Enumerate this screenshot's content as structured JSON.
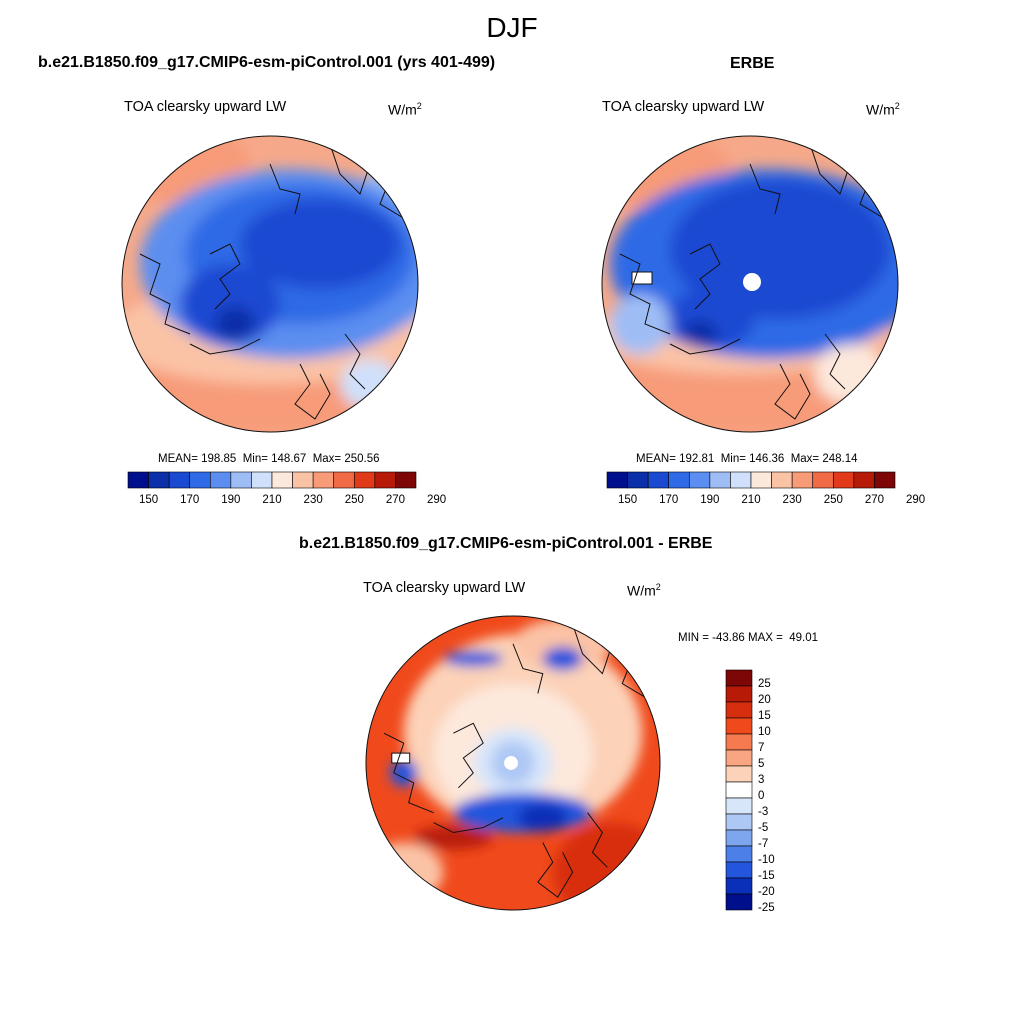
{
  "main_title": "DJF",
  "left_panel": {
    "case_title": "b.e21.B1850.f09_g17.CMIP6-esm-piControl.001 (yrs 401-499)",
    "variable": "TOA clearsky upward LW",
    "units_base": "W/m",
    "units_exp": "2",
    "stats": "MEAN= 198.85  Min= 148.67  Max= 250.56"
  },
  "right_panel": {
    "case_title": "ERBE",
    "variable": "TOA clearsky upward LW",
    "units_base": "W/m",
    "units_exp": "2",
    "stats": "MEAN= 192.81  Min= 146.36  Max= 248.14"
  },
  "diff_panel": {
    "case_title": "b.e21.B1850.f09_g17.CMIP6-esm-piControl.001 - ERBE",
    "variable": "TOA clearsky upward LW",
    "units_base": "W/m",
    "units_exp": "2",
    "stats": "MIN = -43.86 MAX =  49.01"
  },
  "abs_colorbar": {
    "colors": [
      "#000f8c",
      "#0a2fa8",
      "#1a4ad2",
      "#2f6be6",
      "#5b8ef0",
      "#9fbdf5",
      "#d0e0fa",
      "#fde8dc",
      "#fbc3a6",
      "#f79b79",
      "#f06a45",
      "#e03a1a",
      "#b81a08",
      "#7d0606"
    ],
    "labels": [
      "150",
      "170",
      "190",
      "210",
      "230",
      "250",
      "270",
      "290"
    ]
  },
  "diff_colorbar": {
    "colors": [
      "#7d0606",
      "#b81a08",
      "#d82e10",
      "#f04a1c",
      "#f57a50",
      "#f9a582",
      "#fcd2b8",
      "#ffffff",
      "#d8e6fa",
      "#aec8f5",
      "#7ea6ef",
      "#4c7fe8",
      "#2455dd",
      "#0a2fb8",
      "#000f8c"
    ],
    "labels": [
      "25",
      "20",
      "15",
      "10",
      "7",
      "5",
      "3",
      "0",
      "-3",
      "-5",
      "-7",
      "-10",
      "-15",
      "-20",
      "-25"
    ]
  }
}
